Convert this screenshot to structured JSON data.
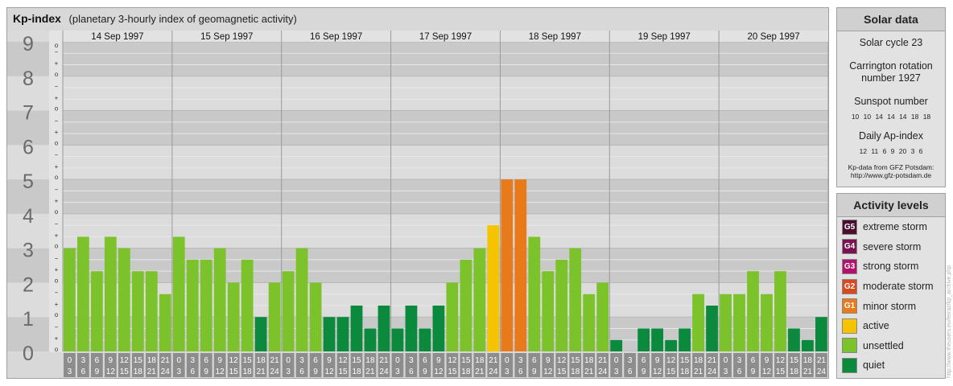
{
  "header": {
    "title": "Kp-index",
    "subtitle": "(planetary 3-hourly index of geomagnetic activity)"
  },
  "chart_data": {
    "type": "bar",
    "title": "Kp-index",
    "subtitle": "(planetary 3-hourly index of geomagnetic activity)",
    "ylim": [
      0,
      9
    ],
    "y_major_ticks": [
      "0",
      "1",
      "2",
      "3",
      "4",
      "5",
      "6",
      "7",
      "8",
      "9"
    ],
    "y_minor_labels": [
      "o",
      "+",
      "−",
      "o"
    ],
    "days": [
      "14 Sep 1997",
      "15 Sep 1997",
      "16 Sep 1997",
      "17 Sep 1997",
      "18 Sep 1997",
      "19 Sep 1997",
      "20 Sep 1997"
    ],
    "interval_start": [
      "0",
      "3",
      "6",
      "9",
      "12",
      "15",
      "18",
      "21"
    ],
    "interval_end": [
      "3",
      "6",
      "9",
      "12",
      "15",
      "18",
      "21",
      "24"
    ],
    "values": [
      [
        3.0,
        3.333,
        2.333,
        3.333,
        3.0,
        2.333,
        2.333,
        1.667
      ],
      [
        3.333,
        2.667,
        2.667,
        3.0,
        2.0,
        2.667,
        1.0,
        2.0
      ],
      [
        2.333,
        3.0,
        2.0,
        1.0,
        1.0,
        1.333,
        0.667,
        1.333
      ],
      [
        0.667,
        1.333,
        0.667,
        1.333,
        2.0,
        2.667,
        3.0,
        3.667
      ],
      [
        5.0,
        5.0,
        3.333,
        2.333,
        2.667,
        3.0,
        1.667,
        2.0
      ],
      [
        0.333,
        0.0,
        0.667,
        0.667,
        0.333,
        0.667,
        1.667,
        1.333
      ],
      [
        1.667,
        1.667,
        2.333,
        1.667,
        2.333,
        0.667,
        0.333,
        1.0
      ]
    ],
    "level_colors": {
      "quiet": "#0b8a3e",
      "unsettled": "#7cc22a",
      "active": "#f5c400",
      "minor storm": "#e87a1c"
    },
    "grid": true
  },
  "solar": {
    "title": "Solar data",
    "cycle": "Solar cycle 23",
    "carrington": "Carrington rotation number 1927",
    "sunspot_label": "Sunspot number",
    "sunspot_numbers": "10 10 14 14 14 18 18",
    "ap_label": "Daily Ap-index",
    "ap_values": "12 11 6 9 20 3 6",
    "source_line1": "Kp-data from GFZ Potsdam:",
    "source_line2": "http://www.gfz-potsdam.de"
  },
  "activity": {
    "title": "Activity levels",
    "levels": [
      {
        "code": "G5",
        "label": "extreme storm",
        "color": "#4a0f2e"
      },
      {
        "code": "G4",
        "label": "severe storm",
        "color": "#7a1450"
      },
      {
        "code": "G3",
        "label": "strong storm",
        "color": "#b1136a"
      },
      {
        "code": "G2",
        "label": "moderate storm",
        "color": "#d84a1e"
      },
      {
        "code": "G1",
        "label": "minor storm",
        "color": "#e87a1c"
      },
      {
        "code": "",
        "label": "active",
        "color": "#f5c400"
      },
      {
        "code": "",
        "label": "unsettled",
        "color": "#7cc22a"
      },
      {
        "code": "",
        "label": "quiet",
        "color": "#0b8a3e"
      }
    ]
  },
  "credit": "http://www.theusers.eu/ferraz/kp_archive.php"
}
